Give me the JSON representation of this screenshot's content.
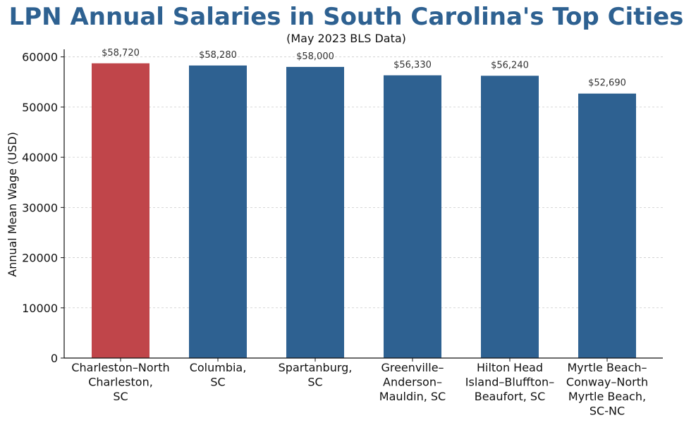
{
  "chart_data": {
    "type": "bar",
    "title": "LPN Annual Salaries in South Carolina's Top Cities",
    "subtitle": "(May 2023 BLS Data)",
    "xlabel": "",
    "ylabel": "Annual Mean Wage (USD)",
    "ylim": [
      0,
      61500
    ],
    "yticks": [
      0,
      10000,
      20000,
      30000,
      40000,
      50000,
      60000
    ],
    "grid": "horizontal dashed",
    "categories": [
      [
        "Charleston–North",
        "Charleston,",
        "SC"
      ],
      [
        "Columbia,",
        "SC"
      ],
      [
        "Spartanburg,",
        "SC"
      ],
      [
        "Greenville–",
        "Anderson–",
        "Mauldin, SC"
      ],
      [
        "Hilton Head",
        "Island–Bluffton–",
        "Beaufort, SC"
      ],
      [
        "Myrtle Beach–",
        "Conway–North",
        "Myrtle Beach,",
        "SC-NC"
      ]
    ],
    "values": [
      58720,
      58280,
      58000,
      56330,
      56240,
      52690
    ],
    "value_labels": [
      "$58,720",
      "$58,280",
      "$58,000",
      "$56,330",
      "$56,240",
      "$52,690"
    ],
    "colors": [
      "#c0454a",
      "#2e6191",
      "#2e6191",
      "#2e6191",
      "#2e6191",
      "#2e6191"
    ],
    "highlight": "Charleston–North Charleston, SC"
  },
  "colors": {
    "title": "#2e6191",
    "highlight_bar": "#c0454a",
    "default_bar": "#2e6191",
    "grid": "#cccccc"
  }
}
